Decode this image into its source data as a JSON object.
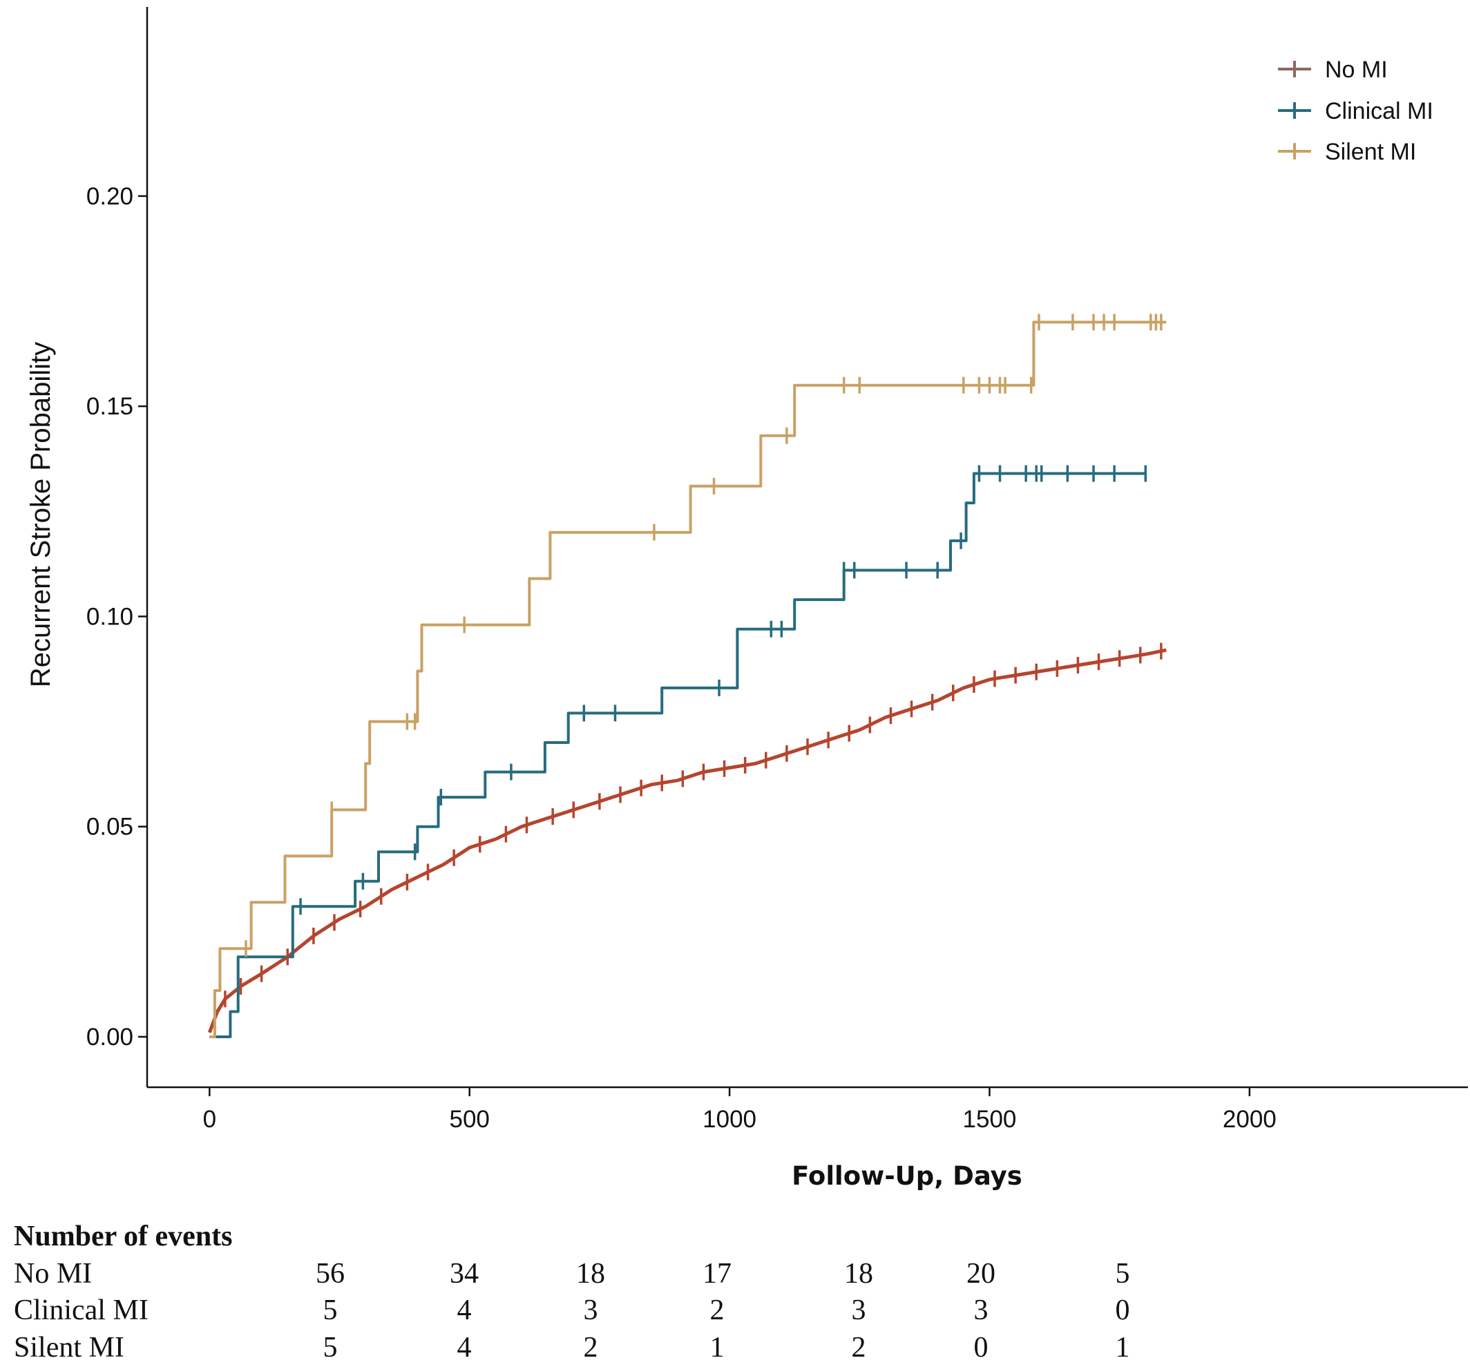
{
  "chart_data": {
    "type": "line",
    "title": "",
    "xlabel": "Follow-Up, Days",
    "ylabel": "Recurrent Stroke Probability",
    "xlim": [
      -120,
      2420
    ],
    "ylim": [
      -0.012,
      0.245
    ],
    "xticks": [
      0,
      500,
      1000,
      1500,
      2000
    ],
    "yticks": [
      0.0,
      0.05,
      0.1,
      0.15,
      0.2
    ],
    "ytick_labels": [
      "0.00",
      "0.05",
      "0.10",
      "0.15",
      "0.20"
    ],
    "grid": false,
    "legend_position": "top-right",
    "series": [
      {
        "name": "No MI",
        "color": "#b5452f",
        "legend_color": "#8c6a5c",
        "step": false,
        "points": [
          [
            0,
            0.001
          ],
          [
            15,
            0.006
          ],
          [
            30,
            0.009
          ],
          [
            60,
            0.012
          ],
          [
            100,
            0.015
          ],
          [
            150,
            0.019
          ],
          [
            200,
            0.024
          ],
          [
            250,
            0.028
          ],
          [
            300,
            0.031
          ],
          [
            350,
            0.035
          ],
          [
            400,
            0.038
          ],
          [
            450,
            0.041
          ],
          [
            500,
            0.045
          ],
          [
            550,
            0.047
          ],
          [
            600,
            0.05
          ],
          [
            650,
            0.052
          ],
          [
            700,
            0.054
          ],
          [
            750,
            0.056
          ],
          [
            800,
            0.058
          ],
          [
            850,
            0.06
          ],
          [
            900,
            0.061
          ],
          [
            950,
            0.063
          ],
          [
            1000,
            0.064
          ],
          [
            1050,
            0.065
          ],
          [
            1100,
            0.067
          ],
          [
            1150,
            0.069
          ],
          [
            1200,
            0.071
          ],
          [
            1250,
            0.073
          ],
          [
            1300,
            0.076
          ],
          [
            1350,
            0.078
          ],
          [
            1400,
            0.08
          ],
          [
            1450,
            0.083
          ],
          [
            1500,
            0.085
          ],
          [
            1550,
            0.086
          ],
          [
            1600,
            0.087
          ],
          [
            1650,
            0.088
          ],
          [
            1700,
            0.089
          ],
          [
            1750,
            0.09
          ],
          [
            1800,
            0.091
          ],
          [
            1840,
            0.092
          ]
        ]
      },
      {
        "name": "Clinical MI",
        "color": "#266c7e",
        "step": true,
        "points": [
          [
            0,
            0.0
          ],
          [
            40,
            0.0
          ],
          [
            40,
            0.006
          ],
          [
            55,
            0.006
          ],
          [
            55,
            0.019
          ],
          [
            160,
            0.019
          ],
          [
            160,
            0.031
          ],
          [
            280,
            0.031
          ],
          [
            280,
            0.037
          ],
          [
            325,
            0.037
          ],
          [
            325,
            0.044
          ],
          [
            400,
            0.044
          ],
          [
            400,
            0.05
          ],
          [
            440,
            0.05
          ],
          [
            440,
            0.057
          ],
          [
            530,
            0.057
          ],
          [
            530,
            0.063
          ],
          [
            645,
            0.063
          ],
          [
            645,
            0.07
          ],
          [
            690,
            0.07
          ],
          [
            690,
            0.077
          ],
          [
            870,
            0.077
          ],
          [
            870,
            0.083
          ],
          [
            1015,
            0.083
          ],
          [
            1015,
            0.097
          ],
          [
            1125,
            0.097
          ],
          [
            1125,
            0.104
          ],
          [
            1220,
            0.104
          ],
          [
            1220,
            0.111
          ],
          [
            1425,
            0.111
          ],
          [
            1425,
            0.118
          ],
          [
            1455,
            0.118
          ],
          [
            1455,
            0.127
          ],
          [
            1470,
            0.127
          ],
          [
            1470,
            0.134
          ],
          [
            1800,
            0.134
          ]
        ]
      },
      {
        "name": "Silent MI",
        "color": "#c9a163",
        "step": true,
        "points": [
          [
            0,
            0.0
          ],
          [
            10,
            0.0
          ],
          [
            10,
            0.011
          ],
          [
            20,
            0.011
          ],
          [
            20,
            0.021
          ],
          [
            80,
            0.021
          ],
          [
            80,
            0.032
          ],
          [
            145,
            0.032
          ],
          [
            145,
            0.043
          ],
          [
            235,
            0.043
          ],
          [
            235,
            0.054
          ],
          [
            300,
            0.054
          ],
          [
            300,
            0.065
          ],
          [
            308,
            0.065
          ],
          [
            308,
            0.075
          ],
          [
            400,
            0.075
          ],
          [
            400,
            0.087
          ],
          [
            408,
            0.087
          ],
          [
            408,
            0.098
          ],
          [
            615,
            0.098
          ],
          [
            615,
            0.109
          ],
          [
            655,
            0.109
          ],
          [
            655,
            0.12
          ],
          [
            925,
            0.12
          ],
          [
            925,
            0.131
          ],
          [
            1060,
            0.131
          ],
          [
            1060,
            0.143
          ],
          [
            1125,
            0.143
          ],
          [
            1125,
            0.155
          ],
          [
            1585,
            0.155
          ],
          [
            1585,
            0.17
          ],
          [
            1840,
            0.17
          ]
        ]
      }
    ],
    "censor_marks": {
      "No MI": [
        30,
        60,
        100,
        150,
        200,
        240,
        290,
        330,
        380,
        420,
        470,
        520,
        570,
        610,
        660,
        700,
        750,
        790,
        830,
        870,
        910,
        950,
        990,
        1030,
        1070,
        1110,
        1150,
        1190,
        1230,
        1270,
        1310,
        1350,
        1390,
        1430,
        1470,
        1510,
        1550,
        1590,
        1630,
        1670,
        1710,
        1750,
        1790,
        1830
      ],
      "Clinical MI": [
        175,
        295,
        395,
        445,
        580,
        720,
        780,
        980,
        1080,
        1100,
        1220,
        1240,
        1340,
        1400,
        1445,
        1480,
        1520,
        1570,
        1590,
        1600,
        1650,
        1700,
        1740,
        1800
      ],
      "Silent MI": [
        70,
        235,
        380,
        395,
        490,
        855,
        970,
        1110,
        1220,
        1250,
        1450,
        1480,
        1500,
        1520,
        1530,
        1580,
        1595,
        1660,
        1700,
        1720,
        1740,
        1810,
        1820,
        1830
      ]
    }
  },
  "risk_table": {
    "title": "Number of events",
    "rows": [
      {
        "label": "No MI",
        "values": [
          "56",
          "34",
          "18",
          "17",
          "18",
          "20",
          "5"
        ]
      },
      {
        "label": "Clinical MI",
        "values": [
          "5",
          "4",
          "3",
          "2",
          "3",
          "3",
          "0"
        ]
      },
      {
        "label": "Silent MI",
        "values": [
          "5",
          "4",
          "2",
          "1",
          "2",
          "0",
          "1"
        ]
      }
    ]
  }
}
